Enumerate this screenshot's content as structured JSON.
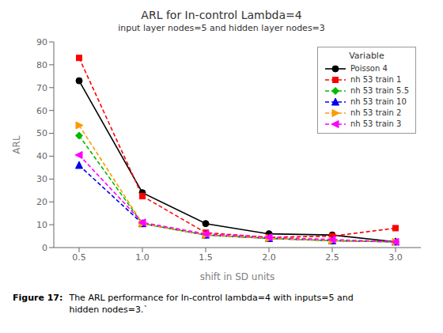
{
  "chart_data": {
    "type": "line",
    "title": "ARL for In-control Lambda=4",
    "subtitle": "input layer nodes=5 and hidden layer nodes=3",
    "x_label": "shift in SD units",
    "y_label": "ARL",
    "x": [
      0.5,
      1.0,
      1.5,
      2.0,
      2.5,
      3.0
    ],
    "xlim": [
      0.3,
      3.2
    ],
    "xticks": [
      0.5,
      {
        "value": 1.0,
        "label": "1.0"
      },
      1.5,
      {
        "value": 2.0,
        "label": "2.0"
      },
      2.5,
      {
        "value": 3.0,
        "label": "3.0"
      }
    ],
    "ylim": [
      0,
      90
    ],
    "yticks": [
      0,
      10,
      20,
      30,
      40,
      50,
      60,
      70,
      80,
      90
    ],
    "legend": "upper right",
    "legend_title": "Variable",
    "series": [
      {
        "name": "Poisson 4",
        "color": "#000000",
        "marker": "circle",
        "line_style": "solid",
        "values": [
          73.0,
          24.0,
          10.5,
          6.0,
          5.5,
          2.5
        ]
      },
      {
        "name": "nh 53 train 1",
        "color": "#ff0000",
        "marker": "square",
        "line_style": "dashed",
        "values": [
          83.0,
          22.5,
          6.5,
          4.5,
          5.0,
          8.5
        ]
      },
      {
        "name": "nh 53 train 5.5",
        "color": "#00bb00",
        "marker": "diamond",
        "line_style": "dashed",
        "values": [
          49.0,
          10.5,
          5.5,
          4.0,
          3.0,
          2.5
        ]
      },
      {
        "name": "nh 53 train 10",
        "color": "#0000ee",
        "marker": "triangle_up",
        "line_style": "dashed",
        "values": [
          36.0,
          10.5,
          5.5,
          4.0,
          3.0,
          2.5
        ]
      },
      {
        "name": "nh 53 train 2",
        "color": "#ff9900",
        "marker": "triangle_right",
        "line_style": "dashed",
        "values": [
          53.5,
          10.5,
          5.5,
          4.0,
          3.0,
          2.5
        ]
      },
      {
        "name": "nh 53 train 3",
        "color": "#ff00ff",
        "marker": "triangle_left",
        "line_style": "dashed",
        "values": [
          40.5,
          11.0,
          6.0,
          4.5,
          3.5,
          2.5
        ]
      }
    ],
    "annotations": [
      "Figure 17:",
      "The ARL performance for In-control lambda=4 with inputs=5 and\nhidden nodes=3.`"
    ]
  }
}
